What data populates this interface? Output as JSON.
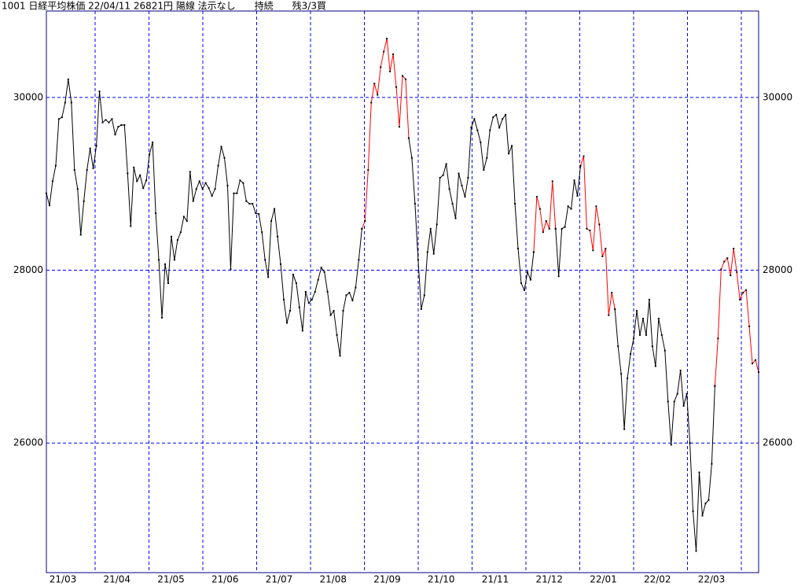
{
  "chart_data": {
    "type": "line",
    "title": "1001 日経平均株価 22/04/11 26821円 陽線 法示なし　　持続　　残3/3買",
    "x_labels": [
      "21/03",
      "21/04",
      "21/05",
      "21/06",
      "21/07",
      "21/08",
      "21/09",
      "21/10",
      "21/11",
      "21/12",
      "22/01",
      "22/02",
      "22/03"
    ],
    "ylim": [
      24500,
      31000
    ],
    "yticks": [
      26000,
      28000,
      30000
    ],
    "grid": true,
    "grid_color": "#0000ff",
    "frame_color": "#000080",
    "series": [
      {
        "color": "#000000",
        "values": [
          28890,
          28750,
          29030,
          29210,
          29750,
          29770,
          29940,
          30210,
          29940,
          29160,
          28940,
          28410,
          28800,
          29160,
          29410,
          29180,
          29440,
          30070,
          29710,
          29740,
          29710,
          29750,
          29570,
          29660,
          29680,
          29680,
          29120,
          28510,
          29190,
          29030,
          29100,
          28950,
          29040,
          29340,
          29480,
          28660,
          28120,
          27450,
          28070,
          27850,
          28390,
          28120,
          28350,
          28440,
          28620,
          28570,
          29140,
          28800,
          28940,
          29030,
          28940,
          29010,
          28950,
          28860,
          28940,
          29210,
          29430,
          29300,
          28980,
          28010,
          28890,
          28890,
          29040,
          29010,
          28800,
          28770,
          28770,
          28660,
          28650,
          28440,
          28120,
          27920,
          28570,
          28710,
          28390,
          28070,
          27660,
          27390,
          27530,
          27950,
          27850,
          27570,
          27300,
          27750,
          27620,
          27660,
          27750,
          27890,
          28030,
          27980,
          27750,
          27480,
          27530,
          27250,
          27010,
          27530,
          27710,
          27740,
          27650,
          27800,
          28120,
          28480
        ]
      },
      {
        "color": "#ff0000",
        "values": [
          28480,
          28570,
          29160,
          29940,
          30160,
          30030,
          30350,
          30530,
          30680,
          30300,
          30500,
          30120,
          29660,
          30250,
          30210,
          29530
        ]
      },
      {
        "color": "#000000",
        "values": [
          29530,
          29300,
          28770,
          28120,
          27550,
          27710,
          28210,
          28480,
          28190,
          28530,
          29070,
          29100,
          29230,
          28940,
          28770,
          28600,
          29120,
          28980,
          28850,
          29070,
          29650,
          29750,
          29620,
          29480,
          29160,
          29300,
          29620,
          29770,
          29800,
          29650,
          29750,
          29800,
          29350,
          29440,
          28770,
          28250,
          27850,
          27770,
          27980,
          27890,
          28210
        ]
      },
      {
        "color": "#ff0000",
        "values": [
          28210,
          28850,
          28710,
          28440,
          28570,
          28480,
          29030,
          28480
        ]
      },
      {
        "color": "#000000",
        "values": [
          28480,
          27930,
          28480,
          28500,
          28740,
          28710,
          29040,
          28860,
          29210
        ]
      },
      {
        "color": "#ff0000",
        "values": [
          29210,
          29320,
          28480,
          28460,
          28230,
          28740,
          28530,
          28160,
          28250,
          27480,
          27740,
          27550
        ]
      },
      {
        "color": "#000000",
        "values": [
          27550,
          27120,
          26800,
          26160,
          26750,
          27030,
          27210,
          27530,
          27250,
          27440,
          27250,
          27660,
          27120,
          26890,
          27440,
          27250,
          27070,
          26480,
          25980,
          26480,
          26570,
          26840,
          26430,
          26570,
          26000,
          25210,
          24750,
          25660,
          25160,
          25300,
          25340,
          25760,
          26660
        ]
      },
      {
        "color": "#ff0000",
        "values": [
          26660,
          27210,
          28010,
          28100,
          28140,
          27940,
          28250,
          27980,
          27660,
          27740,
          27770,
          27350,
          26920,
          26960,
          26821
        ]
      }
    ]
  }
}
